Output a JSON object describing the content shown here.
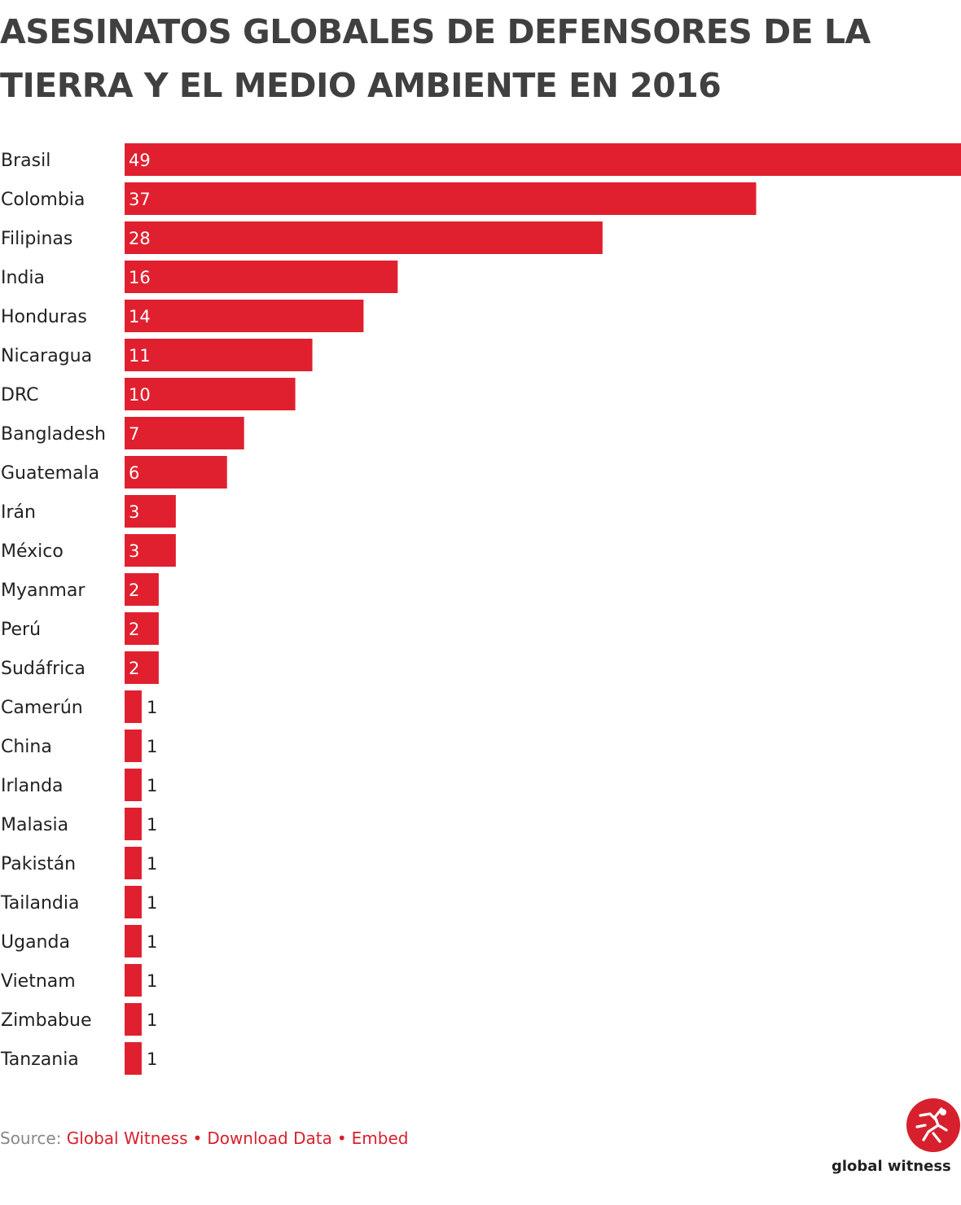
{
  "title": "ASESINATOS GLOBALES DE DEFENSORES DE LA TIERRA Y EL MEDIO AMBIENTE EN 2016",
  "footer": {
    "source_prefix": "Source:",
    "source_link": "Global Witness",
    "download_link": "Download Data",
    "embed_link": "Embed",
    "separator": "•"
  },
  "brand": {
    "name": "global witness",
    "logo_icon": "global-witness-logo-icon",
    "color": "#d7202e"
  },
  "chart_data": {
    "type": "bar",
    "orientation": "horizontal",
    "title": "ASESINATOS GLOBALES DE DEFENSORES DE LA TIERRA Y EL MEDIO AMBIENTE EN 2016",
    "categories": [
      "Brasil",
      "Colombia",
      "Filipinas",
      "India",
      "Honduras",
      "Nicaragua",
      "DRC",
      "Bangladesh",
      "Guatemala",
      "Irán",
      "México",
      "Myanmar",
      "Perú",
      "Sudáfrica",
      "Camerún",
      "China",
      "Irlanda",
      "Malasia",
      "Pakistán",
      "Tailandia",
      "Uganda",
      "Vietnam",
      "Zimbabue",
      "Tanzania"
    ],
    "values": [
      49,
      37,
      28,
      16,
      14,
      11,
      10,
      7,
      6,
      3,
      3,
      2,
      2,
      2,
      1,
      1,
      1,
      1,
      1,
      1,
      1,
      1,
      1,
      1
    ],
    "xlim": [
      0,
      49
    ],
    "bar_color": "#e0202f",
    "grid": false,
    "legend": false
  }
}
